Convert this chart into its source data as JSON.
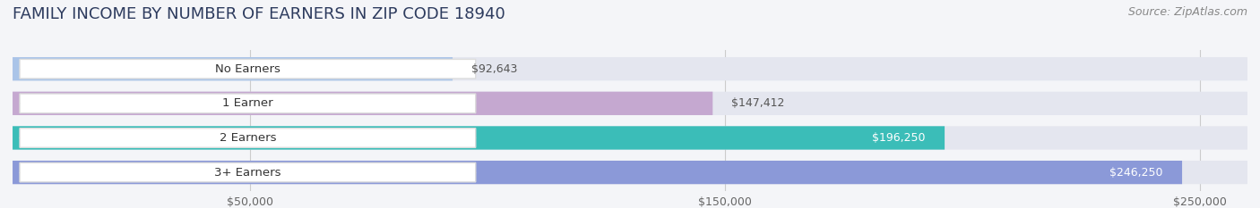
{
  "title": "FAMILY INCOME BY NUMBER OF EARNERS IN ZIP CODE 18940",
  "source": "Source: ZipAtlas.com",
  "categories": [
    "No Earners",
    "1 Earner",
    "2 Earners",
    "3+ Earners"
  ],
  "values": [
    92643,
    147412,
    196250,
    246250
  ],
  "bar_colors": [
    "#aac4e8",
    "#c5a8d0",
    "#3bbdb8",
    "#8b99d8"
  ],
  "label_colors": [
    "#555555",
    "#555555",
    "#ffffff",
    "#ffffff"
  ],
  "value_labels": [
    "$92,643",
    "$147,412",
    "$196,250",
    "$246,250"
  ],
  "xlim": [
    0,
    260000
  ],
  "xticks": [
    50000,
    150000,
    250000
  ],
  "xtick_labels": [
    "$50,000",
    "$150,000",
    "$250,000"
  ],
  "background_color": "#f4f5f8",
  "bar_bg_color": "#e4e6ef",
  "title_fontsize": 13,
  "source_fontsize": 9
}
